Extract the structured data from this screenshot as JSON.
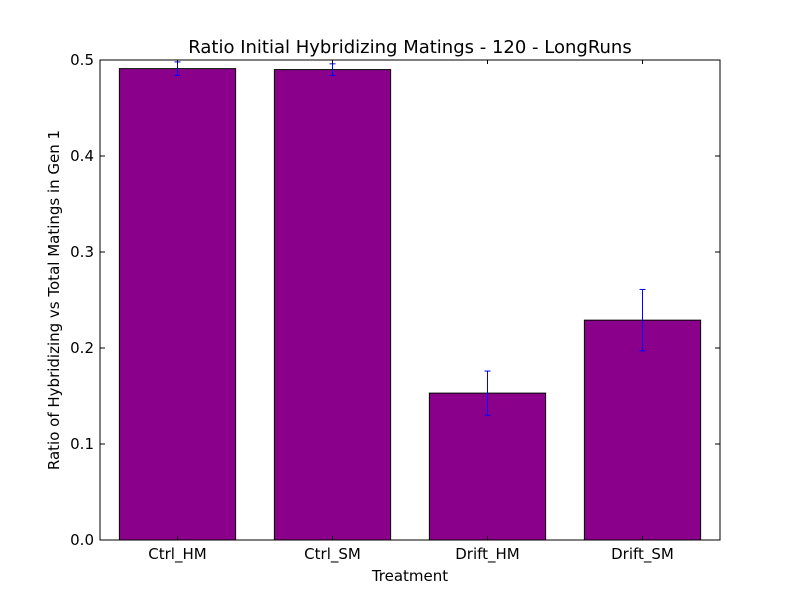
{
  "chart_data": {
    "type": "bar",
    "title": "Ratio Initial Hybridizing Matings - 120 - LongRuns",
    "xlabel": "Treatment",
    "ylabel": "Ratio of Hybridizing vs Total Matings in Gen 1",
    "categories": [
      "Ctrl_HM",
      "Ctrl_SM",
      "Drift_HM",
      "Drift_SM"
    ],
    "values": [
      0.491,
      0.49,
      0.153,
      0.229
    ],
    "error": [
      0.007,
      0.006,
      0.023,
      0.032
    ],
    "ylim": [
      0,
      0.5
    ],
    "yticks": [
      0.0,
      0.1,
      0.2,
      0.3,
      0.4,
      0.5
    ],
    "ytick_labels": [
      "0.0",
      "0.1",
      "0.2",
      "0.3",
      "0.4",
      "0.5"
    ],
    "grid": false,
    "bar_color": "#8b008b",
    "error_color": "#0000ff"
  }
}
